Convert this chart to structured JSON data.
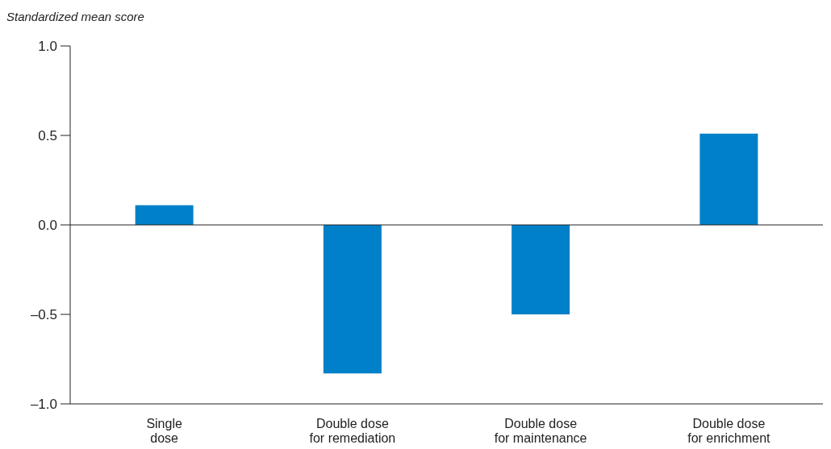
{
  "chart_data": {
    "type": "bar",
    "ylabel": "Standardized mean score",
    "categories": [
      "Single dose",
      "Double dose for remediation",
      "Double dose for maintenance",
      "Double dose for enrichment"
    ],
    "values": [
      0.11,
      -0.83,
      -0.5,
      0.51
    ],
    "color": "#0080c8",
    "ylim": [
      -1,
      1
    ],
    "yticks": [
      {
        "value": -1,
        "label": "–1.0"
      },
      {
        "value": -0.5,
        "label": "–0.5"
      },
      {
        "value": 0,
        "label": "0.0"
      },
      {
        "value": 0.5,
        "label": "0.5"
      },
      {
        "value": 1,
        "label": "1.0"
      }
    ],
    "data_labels": false
  }
}
